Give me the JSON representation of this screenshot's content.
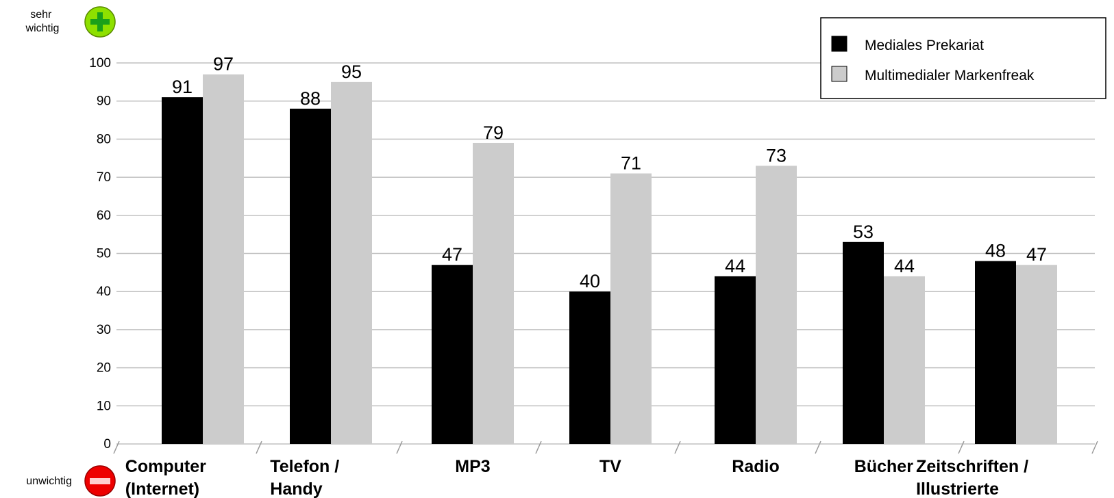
{
  "annotations": {
    "top": "sehr\nwichtig",
    "bottom": "unwichtig"
  },
  "icons": {
    "top": "plus-icon",
    "bottom": "minus-icon"
  },
  "colors": {
    "series1": "#000000",
    "series2": "#cccccc",
    "grid": "#c0c0c0",
    "plus_icon": "#8ee000",
    "minus_icon": "#ee0000"
  },
  "chart_data": {
    "type": "bar",
    "categories": [
      "Computer\n(Internet)",
      "Telefon /\nHandy",
      "MP3",
      "TV",
      "Radio",
      "Bücher",
      "Zeitschriften /\nIllustrierte"
    ],
    "series": [
      {
        "name": "Mediales Prekariat",
        "values": [
          91,
          88,
          47,
          40,
          44,
          53,
          48
        ]
      },
      {
        "name": "Multimedialer Markenfreak",
        "values": [
          97,
          95,
          79,
          71,
          73,
          44,
          47
        ]
      }
    ],
    "ylim": [
      0,
      100
    ],
    "yticks": [
      0,
      10,
      20,
      30,
      40,
      50,
      60,
      70,
      80,
      90,
      100
    ],
    "grid": true,
    "legend_position": "top-right"
  }
}
